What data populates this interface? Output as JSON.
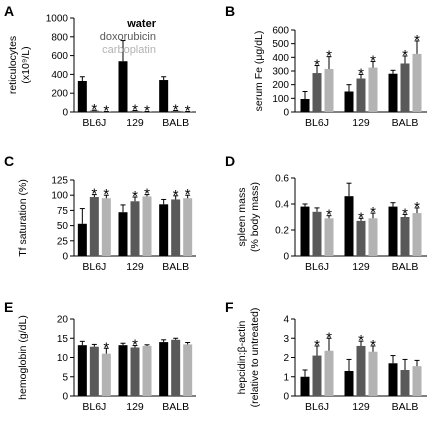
{
  "chart_data": [
    {
      "panel": "A",
      "type": "bar",
      "ylabel_lines": [
        "reticulocytes",
        "(x10⁹/L)"
      ],
      "ylim": [
        0,
        1000
      ],
      "yticks": [
        0,
        200,
        400,
        600,
        800,
        1000
      ],
      "categories": [
        "BL6J",
        "129",
        "BALB"
      ],
      "legend": {
        "placement": "top-right",
        "entries": [
          "water",
          "doxorubicin",
          "carboplatin"
        ]
      },
      "series": [
        {
          "name": "water",
          "color": "#000000",
          "values": [
            330,
            540,
            340
          ],
          "errors": [
            45,
            220,
            35
          ]
        },
        {
          "name": "doxorubicin",
          "color": "#595959",
          "values": [
            15,
            12,
            12
          ],
          "errors": [
            5,
            4,
            4
          ]
        },
        {
          "name": "carboplatin",
          "color": "#b3b3b3",
          "values": [
            3,
            3,
            3
          ],
          "errors": [
            2,
            2,
            2
          ]
        }
      ],
      "significance": [
        [
          false,
          true,
          true
        ],
        [
          false,
          true,
          true
        ],
        [
          false,
          true,
          true
        ]
      ]
    },
    {
      "panel": "B",
      "type": "bar",
      "ylabel_lines": [
        "serum Fe (μg/dL)"
      ],
      "ylim": [
        0,
        600
      ],
      "yticks": [
        0,
        100,
        200,
        300,
        400,
        500,
        600
      ],
      "categories": [
        "BL6J",
        "129",
        "BALB"
      ],
      "series": [
        {
          "name": "water",
          "color": "#000000",
          "values": [
            95,
            150,
            280
          ],
          "errors": [
            55,
            50,
            25
          ]
        },
        {
          "name": "doxorubicin",
          "color": "#595959",
          "values": [
            285,
            245,
            355
          ],
          "errors": [
            55,
            30,
            55
          ]
        },
        {
          "name": "carboplatin",
          "color": "#b3b3b3",
          "values": [
            315,
            325,
            425
          ],
          "errors": [
            90,
            45,
            95
          ]
        }
      ],
      "significance": [
        [
          false,
          true,
          true
        ],
        [
          false,
          true,
          true
        ],
        [
          false,
          true,
          true
        ]
      ]
    },
    {
      "panel": "C",
      "type": "bar",
      "ylabel_lines": [
        "Tf saturation (%)"
      ],
      "ylim": [
        0,
        125
      ],
      "yticks": [
        0,
        25,
        50,
        75,
        100,
        125
      ],
      "categories": [
        "BL6J",
        "129",
        "BALB"
      ],
      "series": [
        {
          "name": "water",
          "color": "#000000",
          "values": [
            53,
            72,
            85
          ],
          "errors": [
            25,
            12,
            8
          ]
        },
        {
          "name": "doxorubicin",
          "color": "#595959",
          "values": [
            97,
            90,
            93
          ],
          "errors": [
            4,
            7,
            6
          ]
        },
        {
          "name": "carboplatin",
          "color": "#b3b3b3",
          "values": [
            95,
            98,
            95
          ],
          "errors": [
            5,
            3,
            5
          ]
        }
      ],
      "significance": [
        [
          false,
          true,
          true
        ],
        [
          false,
          true,
          true
        ],
        [
          false,
          true,
          true
        ]
      ]
    },
    {
      "panel": "D",
      "type": "bar",
      "ylabel_lines": [
        "spleen mass",
        "(% body mass)"
      ],
      "ylim": [
        0,
        0.6
      ],
      "yticks": [
        0,
        0.2,
        0.4,
        0.6
      ],
      "ytick_labels": [
        "0",
        "0.2",
        "0.4",
        "0.6"
      ],
      "categories": [
        "BL6J",
        "129",
        "BALB"
      ],
      "series": [
        {
          "name": "water",
          "color": "#000000",
          "values": [
            0.38,
            0.46,
            0.38
          ],
          "errors": [
            0.02,
            0.1,
            0.03
          ]
        },
        {
          "name": "doxorubicin",
          "color": "#595959",
          "values": [
            0.34,
            0.27,
            0.3
          ],
          "errors": [
            0.03,
            0.02,
            0.02
          ]
        },
        {
          "name": "carboplatin",
          "color": "#b3b3b3",
          "values": [
            0.29,
            0.29,
            0.33
          ],
          "errors": [
            0.02,
            0.04,
            0.04
          ]
        }
      ],
      "significance": [
        [
          false,
          false,
          true
        ],
        [
          false,
          true,
          true
        ],
        [
          false,
          true,
          true
        ]
      ]
    },
    {
      "panel": "E",
      "type": "bar",
      "ylabel_lines": [
        "hemoglobin (g/dL)"
      ],
      "ylim": [
        0,
        20
      ],
      "yticks": [
        0,
        5,
        10,
        15,
        20
      ],
      "categories": [
        "BL6J",
        "129",
        "BALB"
      ],
      "series": [
        {
          "name": "water",
          "color": "#000000",
          "values": [
            13.2,
            13.2,
            14.0
          ],
          "errors": [
            1.0,
            0.5,
            0.6
          ]
        },
        {
          "name": "doxorubicin",
          "color": "#595959",
          "values": [
            12.8,
            12.6,
            14.6
          ],
          "errors": [
            0.6,
            0.5,
            0.4
          ]
        },
        {
          "name": "carboplatin",
          "color": "#b3b3b3",
          "values": [
            11.0,
            13.0,
            13.4
          ],
          "errors": [
            1.4,
            0.3,
            0.5
          ]
        }
      ],
      "significance": [
        [
          false,
          false,
          true
        ],
        [
          false,
          true,
          false
        ],
        [
          false,
          false,
          false
        ]
      ]
    },
    {
      "panel": "F",
      "type": "bar",
      "ylabel_lines": [
        "hepcidin:β-actin",
        "(relative to untreated)"
      ],
      "ylim": [
        0,
        4
      ],
      "yticks": [
        0,
        1,
        2,
        3,
        4
      ],
      "categories": [
        "BL6J",
        "129",
        "BALB"
      ],
      "series": [
        {
          "name": "water",
          "color": "#000000",
          "values": [
            1.0,
            1.3,
            1.7
          ],
          "errors": [
            0.35,
            0.6,
            0.4
          ]
        },
        {
          "name": "doxorubicin",
          "color": "#595959",
          "values": [
            2.1,
            2.6,
            1.35
          ],
          "errors": [
            0.5,
            0.25,
            0.55
          ]
        },
        {
          "name": "carboplatin",
          "color": "#b3b3b3",
          "values": [
            2.35,
            2.3,
            1.55
          ],
          "errors": [
            0.65,
            0.3,
            0.3
          ]
        }
      ],
      "significance": [
        [
          false,
          true,
          true
        ],
        [
          false,
          true,
          true
        ],
        [
          false,
          false,
          false
        ]
      ]
    }
  ]
}
